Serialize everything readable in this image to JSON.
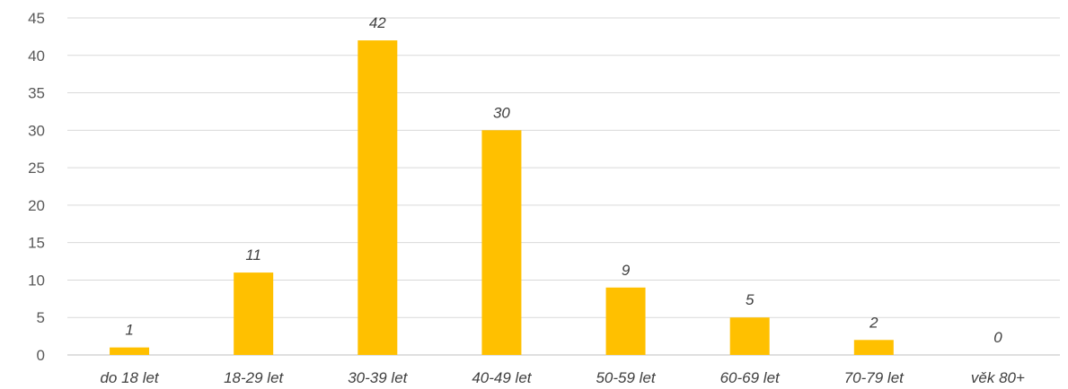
{
  "chart_data": {
    "type": "bar",
    "title": "",
    "xlabel": "",
    "ylabel": "",
    "categories": [
      "do 18 let",
      "18-29 let",
      "30-39 let",
      "40-49 let",
      "50-59 let",
      "60-69 let",
      "70-79 let",
      "věk 80+"
    ],
    "values": [
      1,
      11,
      42,
      30,
      9,
      5,
      2,
      0
    ],
    "ylim": [
      0,
      45
    ],
    "yticks": [
      0,
      5,
      10,
      15,
      20,
      25,
      30,
      35,
      40,
      45
    ],
    "grid": true,
    "legend": "none",
    "bar_color": "#FFC000",
    "data_labels": true
  }
}
